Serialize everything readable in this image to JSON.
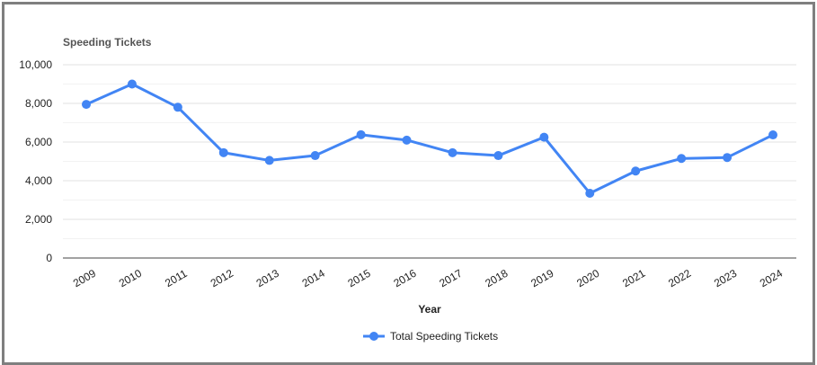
{
  "chart_data": {
    "type": "line",
    "title": "Speeding Tickets",
    "xlabel": "Year",
    "ylabel": "",
    "ylim": [
      0,
      10000
    ],
    "yticks": [
      "0",
      "2,000",
      "4,000",
      "6,000",
      "8,000",
      "10,000"
    ],
    "yticks_values": [
      0,
      2000,
      4000,
      6000,
      8000,
      10000
    ],
    "x": [
      "2009",
      "2010",
      "2011",
      "2012",
      "2013",
      "2014",
      "2015",
      "2016",
      "2017",
      "2018",
      "2019",
      "2020",
      "2021",
      "2022",
      "2023",
      "2024"
    ],
    "series": [
      {
        "name": "Total Speeding Tickets",
        "color": "#4285f4",
        "values": [
          7950,
          9000,
          7800,
          5450,
          5050,
          5300,
          6380,
          6100,
          5450,
          5300,
          6250,
          3350,
          4500,
          5150,
          5200,
          6370
        ]
      }
    ],
    "grid": true,
    "legend": "bottom",
    "gridline_color": "#e0e0e0",
    "baseline_color": "#444444"
  }
}
